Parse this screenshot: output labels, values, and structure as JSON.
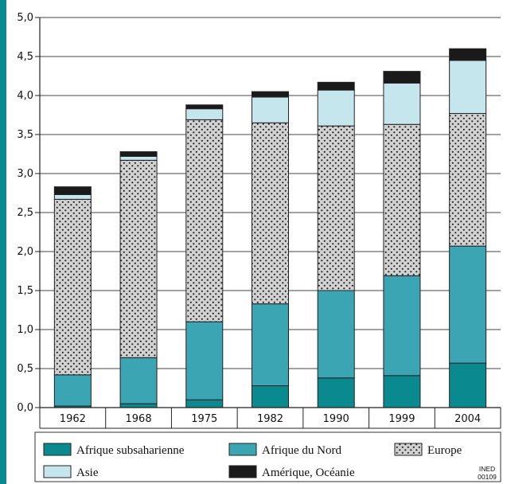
{
  "chart_data": {
    "type": "bar",
    "stacked": true,
    "categories": [
      "1962",
      "1968",
      "1975",
      "1982",
      "1990",
      "1999",
      "2004"
    ],
    "series": [
      {
        "name": "Afrique subsaharienne",
        "values": [
          0.02,
          0.05,
          0.1,
          0.28,
          0.38,
          0.41,
          0.57
        ],
        "color": "#0a8a8f"
      },
      {
        "name": "Afrique du Nord",
        "values": [
          0.4,
          0.59,
          1.0,
          1.05,
          1.12,
          1.28,
          1.5
        ],
        "color": "#3ba5b3"
      },
      {
        "name": "Europe",
        "values": [
          2.25,
          2.53,
          2.59,
          2.32,
          2.11,
          1.94,
          1.7
        ],
        "color": "#c8c8c8",
        "pattern": "dots"
      },
      {
        "name": "Asie",
        "values": [
          0.06,
          0.05,
          0.14,
          0.33,
          0.46,
          0.53,
          0.68
        ],
        "color": "#c6e6ee"
      },
      {
        "name": "Amérique, Océanie",
        "values": [
          0.1,
          0.06,
          0.05,
          0.07,
          0.1,
          0.15,
          0.15
        ],
        "color": "#1a1a1a"
      }
    ],
    "y_ticks": [
      "0,0",
      "0,5",
      "1,0",
      "1,5",
      "2,0",
      "2,5",
      "3,0",
      "3,5",
      "4,0",
      "4,5",
      "5,0"
    ],
    "ylim": [
      0,
      5
    ],
    "title": "",
    "xlabel": "",
    "ylabel": "",
    "grid": true,
    "legend_position": "bottom"
  },
  "source_label_line1": "INED",
  "source_label_line2": "00109",
  "colors": {
    "accent_border": "#0a8a8f",
    "grid": "#444444",
    "bar_outline": "#222222"
  }
}
